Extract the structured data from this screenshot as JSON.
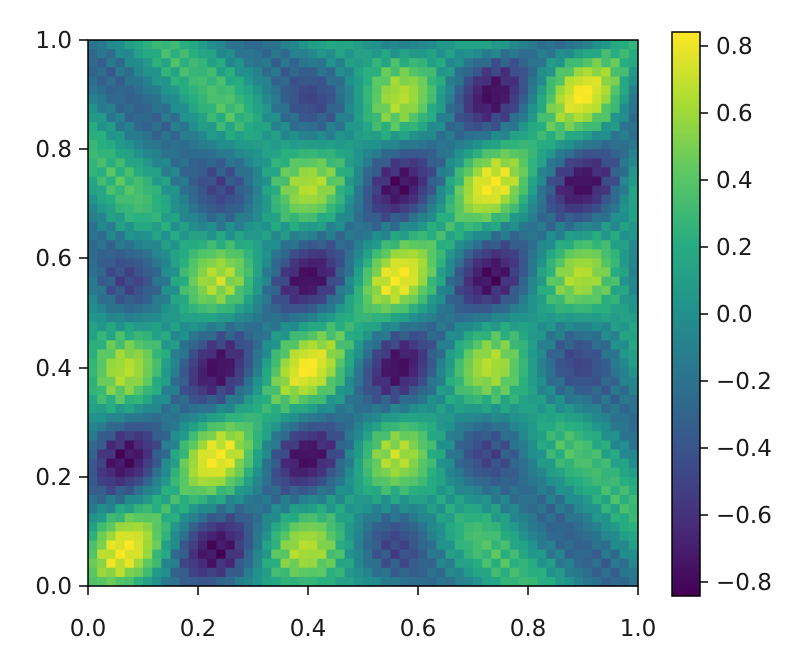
{
  "chart_data": {
    "type": "heatmap",
    "title": "",
    "xlabel": "",
    "ylabel": "",
    "xlim": [
      0.0,
      1.0
    ],
    "ylim": [
      0.0,
      1.0
    ],
    "xticks": [
      "0.0",
      "0.2",
      "0.4",
      "0.6",
      "0.8",
      "1.0"
    ],
    "yticks": [
      "0.0",
      "0.2",
      "0.4",
      "0.6",
      "0.8",
      "1.0"
    ],
    "grid": false,
    "colormap": "viridis",
    "colorbar": {
      "range": [
        -0.85,
        0.85
      ],
      "ticks": [
        "0.8",
        "0.6",
        "0.4",
        "0.2",
        "0.0",
        "−0.2",
        "−0.4",
        "−0.6",
        "−0.8"
      ]
    },
    "function": "0.55*cos(2*pi*3*(x - y)) * 0.5*(1 + cos(2*pi*0.6*(x - y))) + 0.3*cos(2*pi*3*(x + y) - 2*pi*0.4) + 0.1*cos(2*pi*25*x)*cos(2*pi*25*y)",
    "resolution": [
      60,
      60
    ],
    "value_range": [
      -0.85,
      0.85
    ]
  }
}
